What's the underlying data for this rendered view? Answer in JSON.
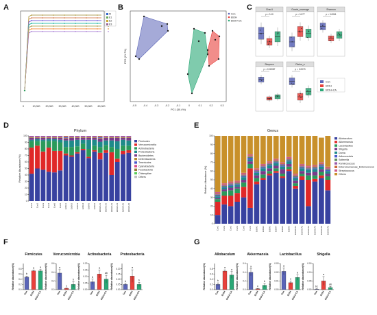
{
  "panel_letters": {
    "A": "A",
    "B": "B",
    "C": "C",
    "D": "D",
    "E": "E",
    "F": "F",
    "G": "G"
  },
  "colors": {
    "con": "#5b65b8",
    "etoh": "#e8413c",
    "etohca": "#2aa876"
  },
  "panel_a": {
    "legend": [
      "M",
      "E1",
      "E2",
      "E3"
    ],
    "series_colors": [
      "#3366cc",
      "#cc6633",
      "#66aa55",
      "#aa3366",
      "#ccaa33",
      "#33aacc",
      "#996699",
      "#66cc99",
      "#cc3366",
      "#3399ff",
      "#999933",
      "#ff6666",
      "#6666ff",
      "#66ff66",
      "#ff9933",
      "#9966cc",
      "#33cc99",
      "#cc9966"
    ],
    "x_ticks": [
      "0",
      "10,000",
      "20,000",
      "30,000",
      "40,000",
      "50,000",
      "60,000"
    ]
  },
  "panel_b": {
    "legend": [
      "Con",
      "EtOH",
      "EtOH+CA"
    ],
    "xlabel": "PC1 (30.4%)",
    "ylabel": "PC2 (21.7%)",
    "x_ticks": [
      "-0.5",
      "-0.4",
      "-0.3",
      "-0.2",
      "-0.1",
      "0",
      "0.1",
      "0.2",
      "0.3"
    ]
  },
  "panel_c": {
    "titles": [
      "Chao1",
      "Goods_coverage",
      "Shannon",
      "Simpson",
      "Pielou_e"
    ],
    "pvals": [
      "p = 0.10",
      "p = 0.077",
      "p = 0.0061",
      "p = 0.00087",
      "p = 0.0073"
    ],
    "legend": [
      "Con",
      "EtOH",
      "EtOH+CA"
    ]
  },
  "panel_d": {
    "title": "Phylum",
    "ylabel": "Relative Abundance (%)",
    "legend": [
      "Firmicutes",
      "Verrucomicrobia",
      "Actinobacteria",
      "Proteobacteria",
      "Bacteroidetes",
      "Deferribacteres",
      "Tenericutes",
      "Cyanobacteria",
      "Fusobacteria",
      "Chlamydiae",
      "Others"
    ],
    "samples": [
      "Con1",
      "Con2",
      "Con3",
      "Con4",
      "Con5",
      "Con6",
      "EtOH1",
      "EtOH2",
      "EtOH3",
      "EtOH4",
      "EtOH5",
      "EtOH6",
      "EtOHCA1",
      "EtOHCA2",
      "EtOHCA3",
      "EtOHCA4",
      "EtOHCA5",
      "EtOHCA6"
    ],
    "y_ticks": [
      "0",
      "10",
      "20",
      "30",
      "40",
      "50",
      "60",
      "70",
      "80",
      "90",
      "100"
    ],
    "colors": [
      "#3842a0",
      "#e02828",
      "#2a9a5a",
      "#1f8a8a",
      "#7a3a8a",
      "#b88838",
      "#4a5acc",
      "#d84a8a",
      "#9a7a3a",
      "#5acc5a",
      "#c0c0c0"
    ]
  },
  "panel_e": {
    "title": "Genus",
    "ylabel": "Relative Abundance (%)",
    "legend": [
      "Allobaculum",
      "Akkermansia",
      "Lactobacillus",
      "Shigella",
      "Dorea",
      "Adlercreutzia",
      "Sutterella",
      "Ruminococcus",
      "Enterococcaceae_Enterococcus",
      "Streptococcus",
      "Others"
    ],
    "samples": [
      "Con1",
      "Con2",
      "Con3",
      "Con4",
      "Con5",
      "Con6",
      "EtOH1",
      "EtOH2",
      "EtOH3",
      "EtOH4",
      "EtOH5",
      "EtOH6",
      "EtOHCA1",
      "EtOHCA2",
      "EtOHCA3",
      "EtOHCA4",
      "EtOHCA5",
      "EtOHCA6"
    ],
    "y_ticks": [
      "0",
      "10",
      "20",
      "30",
      "40",
      "50",
      "60",
      "70",
      "80",
      "90",
      "100"
    ],
    "colors": [
      "#3842a0",
      "#e02828",
      "#2a9a5a",
      "#7a3a8a",
      "#1f8a8a",
      "#4a5acc",
      "#5a8a5a",
      "#9a5aaa",
      "#cc6a3a",
      "#cc5a8a",
      "#c8902a"
    ]
  },
  "panel_f": {
    "ylabel": "Relative abundance(%)",
    "groups": [
      "Con",
      "EtOH",
      "EtOH+CA"
    ],
    "plots": [
      {
        "title": "Firmicutes",
        "values": [
          0.48,
          0.72,
          0.72
        ],
        "errors": [
          0.04,
          0.03,
          0.05
        ],
        "letters": [
          "b",
          "a",
          "a"
        ],
        "ymax": 1.0,
        "ticks": [
          "0.0",
          "0.2",
          "0.4",
          "0.6",
          "0.8"
        ]
      },
      {
        "title": "Verrucomicrobia",
        "values": [
          0.38,
          0.03,
          0.12
        ],
        "errors": [
          0.08,
          0.01,
          0.06
        ],
        "letters": [
          "a",
          "c",
          "b"
        ],
        "ymax": 0.6,
        "ticks": [
          "0.0",
          "0.2",
          "0.4",
          "0.6"
        ]
      },
      {
        "title": "Actinobacteria",
        "values": [
          0.06,
          0.12,
          0.08
        ],
        "errors": [
          0.02,
          0.03,
          0.03
        ],
        "letters": [
          "b",
          "a",
          "ab"
        ],
        "ymax": 0.2,
        "ticks": [
          "0.00",
          "0.05",
          "0.10",
          "0.15",
          "0.20"
        ]
      },
      {
        "title": "Proteobacteria",
        "values": [
          0.05,
          0.13,
          0.05
        ],
        "errors": [
          0.01,
          0.06,
          0.02
        ],
        "letters": [
          "b",
          "a",
          "b"
        ],
        "ymax": 0.25,
        "ticks": [
          "0.00",
          "0.05",
          "0.10",
          "0.15",
          "0.20"
        ]
      }
    ]
  },
  "panel_g": {
    "ylabel": "Relative abundance(%)",
    "groups": [
      "Con",
      "EtOH",
      "EtOH+CA"
    ],
    "plots": [
      {
        "title": "Allobaculum",
        "values": [
          0.2,
          0.71,
          0.56
        ],
        "errors": [
          0.06,
          0.05,
          0.13
        ],
        "letters": [
          "b",
          "a",
          "a"
        ],
        "ymax": 1.0,
        "ticks": [
          "0.0",
          "0.2",
          "0.4",
          "0.6",
          "0.8"
        ]
      },
      {
        "title": "Akkermansia",
        "values": [
          0.4,
          0.02,
          0.1
        ],
        "errors": [
          0.08,
          0.01,
          0.04
        ],
        "letters": [
          "a",
          "c",
          "b"
        ],
        "ymax": 0.6,
        "ticks": [
          "0.0",
          "0.2",
          "0.4",
          "0.6"
        ]
      },
      {
        "title": "Lactobacillus",
        "values": [
          0.021,
          0.008,
          0.014
        ],
        "errors": [
          0.004,
          0.002,
          0.003
        ],
        "letters": [
          "a",
          "c",
          "b"
        ],
        "ymax": 0.03,
        "ticks": [
          "0.00",
          "0.01",
          "0.02",
          "0.03"
        ]
      },
      {
        "title": "Shigella",
        "values": [
          0.003,
          0.05,
          0.012
        ],
        "errors": [
          0.002,
          0.025,
          0.006
        ],
        "letters": [
          "bc",
          "a",
          "ab"
        ],
        "ymax": 0.15,
        "ticks": [
          "0.00",
          "0.05",
          "0.10",
          "0.15"
        ]
      }
    ]
  }
}
